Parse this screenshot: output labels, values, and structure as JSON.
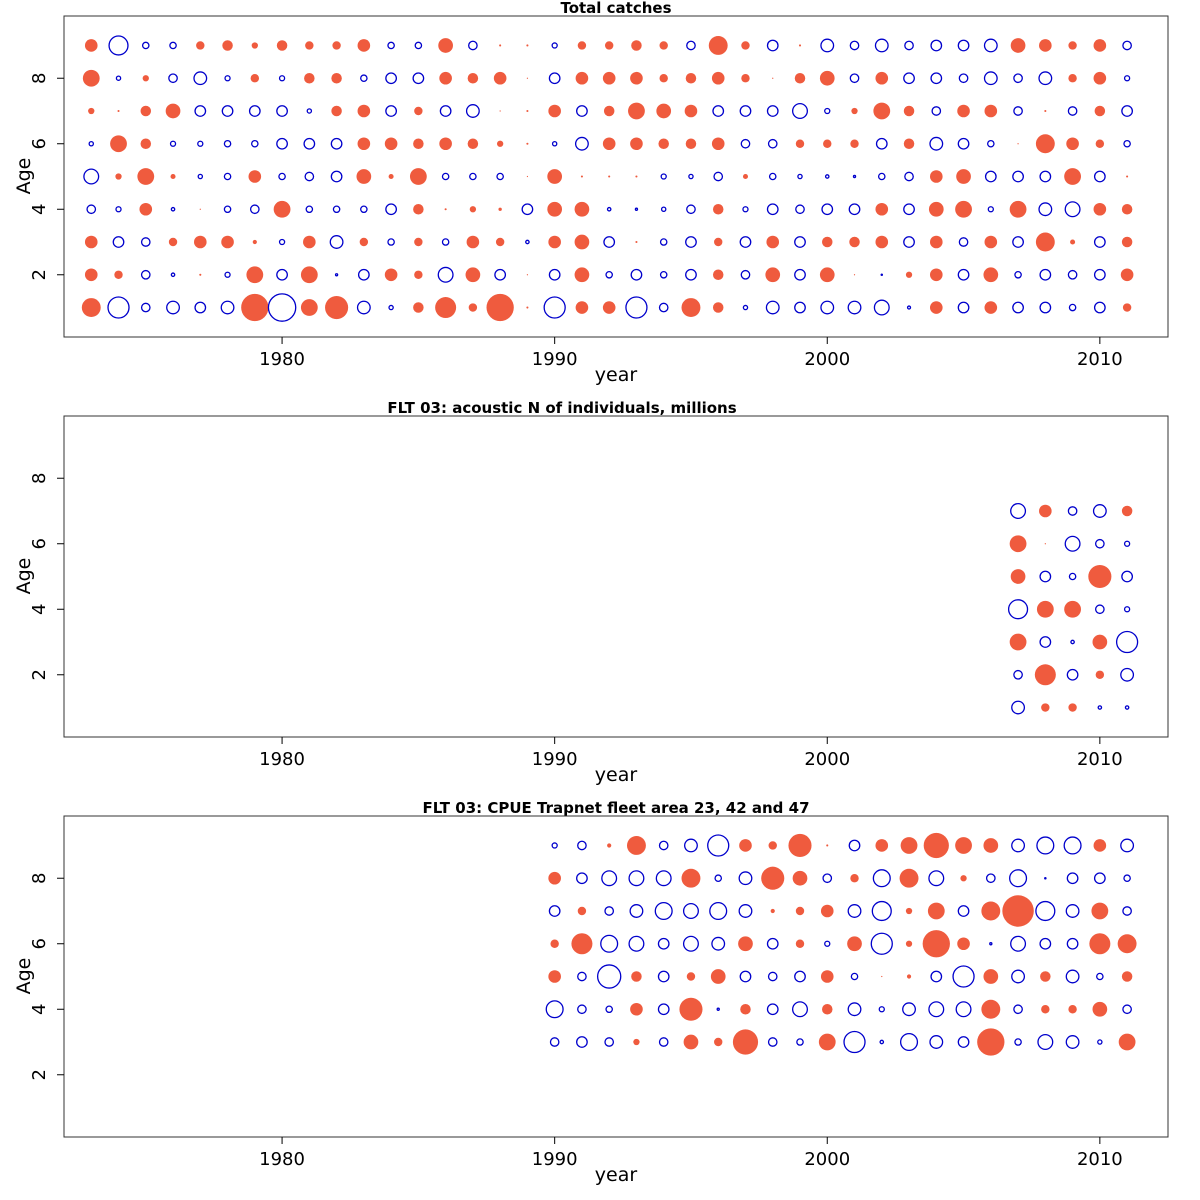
{
  "chart_data": [
    {
      "type": "scatter",
      "title": "Total catches",
      "xlabel": "year",
      "ylabel": "Age",
      "xlim": [
        1972.0,
        2012.5
      ],
      "ylim": [
        0.1,
        9.9
      ],
      "xticks": [
        1980,
        1990,
        2000,
        2010
      ],
      "yticks": [
        2,
        4,
        6,
        8
      ],
      "grid": false,
      "legend": "none",
      "series": [
        {
          "ages": [
            1,
            2,
            3,
            4,
            5,
            6,
            7,
            8,
            9
          ],
          "years": [
            1973,
            1974,
            1975,
            1976,
            1977,
            1978,
            1979,
            1980,
            1981,
            1982,
            1983,
            1984,
            1985,
            1986,
            1987,
            1988,
            1989,
            1990,
            1991,
            1992,
            1993,
            1994,
            1995,
            1996,
            1997,
            1998,
            1999,
            2000,
            2001,
            2002,
            2003,
            2004,
            2005,
            2006,
            2007,
            2008,
            2009,
            2010,
            2011
          ],
          "residuals": [
            [
              0.45,
              -0.5,
              -0.2,
              -0.3,
              -0.25,
              -0.3,
              0.65,
              -0.65,
              0.4,
              0.55,
              -0.3,
              -0.1,
              0.25,
              0.5,
              0.2,
              0.65,
              0.05,
              -0.5,
              0.3,
              0.3,
              -0.5,
              -0.2,
              0.45,
              0.25,
              -0.1,
              -0.3,
              -0.25,
              -0.3,
              -0.3,
              -0.35,
              -0.07,
              0.3,
              -0.25,
              0.3,
              -0.25,
              -0.25,
              -0.15,
              -0.25,
              0.2
            ],
            [
              0.3,
              0.2,
              -0.2,
              -0.08,
              0.05,
              -0.12,
              0.4,
              -0.25,
              0.4,
              -0.05,
              -0.25,
              0.3,
              0.2,
              -0.35,
              0.35,
              -0.25,
              0.0,
              -0.25,
              0.35,
              -0.15,
              -0.25,
              -0.15,
              -0.25,
              0.25,
              -0.2,
              0.35,
              -0.25,
              0.35,
              0.02,
              -0.02,
              0.15,
              0.3,
              -0.25,
              0.35,
              -0.15,
              -0.25,
              -0.2,
              -0.25,
              0.3
            ],
            [
              0.3,
              -0.25,
              -0.2,
              0.2,
              0.3,
              0.3,
              0.1,
              -0.12,
              0.3,
              -0.3,
              0.2,
              -0.15,
              0.2,
              -0.15,
              0.3,
              0.2,
              -0.08,
              0.3,
              0.35,
              -0.25,
              0.05,
              -0.15,
              -0.25,
              0.2,
              -0.25,
              0.3,
              -0.25,
              0.25,
              0.25,
              0.3,
              -0.25,
              0.3,
              -0.2,
              0.3,
              -0.25,
              0.45,
              0.12,
              -0.25,
              0.25
            ],
            [
              -0.2,
              -0.12,
              0.3,
              -0.08,
              0.03,
              -0.15,
              -0.2,
              0.4,
              -0.15,
              -0.15,
              -0.15,
              -0.25,
              0.25,
              0.05,
              0.15,
              0.08,
              -0.25,
              0.35,
              0.35,
              -0.08,
              -0.05,
              -0.1,
              -0.2,
              0.25,
              -0.12,
              -0.25,
              -0.2,
              -0.25,
              -0.25,
              0.3,
              -0.25,
              0.35,
              0.4,
              -0.12,
              0.4,
              -0.3,
              -0.35,
              0.3,
              0.25
            ],
            [
              -0.35,
              0.15,
              0.4,
              0.12,
              -0.1,
              -0.15,
              0.3,
              -0.15,
              -0.2,
              -0.25,
              0.35,
              0.12,
              0.4,
              -0.15,
              -0.15,
              -0.15,
              0.0,
              0.35,
              0.05,
              0.05,
              0.05,
              -0.12,
              -0.1,
              -0.2,
              0.12,
              -0.15,
              -0.1,
              -0.08,
              -0.05,
              -0.15,
              -0.2,
              0.3,
              0.35,
              -0.25,
              -0.25,
              -0.25,
              0.4,
              -0.25,
              0.05
            ],
            [
              -0.1,
              0.4,
              0.25,
              -0.12,
              -0.12,
              -0.15,
              -0.15,
              -0.25,
              -0.25,
              -0.25,
              0.3,
              0.3,
              0.25,
              0.3,
              0.25,
              0.15,
              0.05,
              -0.1,
              -0.3,
              0.3,
              0.3,
              0.25,
              0.25,
              0.3,
              -0.2,
              -0.2,
              0.2,
              0.2,
              0.2,
              -0.25,
              0.25,
              -0.3,
              -0.25,
              -0.15,
              0.03,
              0.45,
              0.3,
              0.2,
              -0.15
            ],
            [
              0.15,
              0.05,
              0.25,
              0.35,
              -0.25,
              -0.25,
              -0.25,
              -0.25,
              -0.1,
              0.25,
              0.3,
              -0.25,
              0.2,
              -0.25,
              -0.3,
              0.03,
              0.05,
              0.3,
              -0.25,
              0.25,
              0.4,
              0.35,
              0.3,
              -0.25,
              -0.25,
              -0.25,
              -0.35,
              -0.12,
              0.15,
              0.4,
              0.25,
              -0.2,
              0.3,
              0.3,
              -0.2,
              0.05,
              -0.2,
              0.25,
              -0.25
            ],
            [
              0.4,
              -0.1,
              0.15,
              -0.2,
              -0.3,
              -0.12,
              0.2,
              -0.12,
              0.25,
              0.25,
              -0.15,
              -0.25,
              -0.25,
              0.3,
              0.25,
              0.3,
              0.0,
              -0.25,
              0.3,
              0.3,
              0.3,
              0.2,
              0.25,
              0.3,
              0.2,
              0.03,
              0.25,
              0.35,
              -0.2,
              0.3,
              -0.25,
              -0.25,
              -0.2,
              -0.3,
              -0.2,
              -0.3,
              0.2,
              0.3,
              -0.12
            ],
            [
              0.3,
              -0.45,
              -0.15,
              -0.15,
              0.2,
              0.25,
              0.15,
              0.25,
              0.2,
              0.2,
              0.3,
              -0.15,
              -0.15,
              0.35,
              -0.2,
              0.05,
              0.05,
              -0.12,
              0.2,
              0.2,
              0.25,
              0.2,
              -0.2,
              0.45,
              0.2,
              -0.25,
              0.05,
              -0.3,
              -0.2,
              -0.3,
              -0.2,
              -0.25,
              -0.25,
              -0.3,
              0.35,
              0.3,
              0.2,
              0.3,
              -0.2
            ]
          ]
        }
      ]
    },
    {
      "type": "scatter",
      "title": "FLT 03:   acoustic   N of individuals, millions",
      "xlabel": "year",
      "ylabel": "Age",
      "xlim": [
        1972.0,
        2012.5
      ],
      "ylim": [
        0.1,
        9.9
      ],
      "xticks": [
        1980,
        1990,
        2000,
        2010
      ],
      "yticks": [
        2,
        4,
        6,
        8
      ],
      "grid": false,
      "legend": "none",
      "series": [
        {
          "ages": [
            1,
            2,
            3,
            4,
            5,
            6,
            7
          ],
          "years": [
            2007,
            2008,
            2009,
            2010,
            2011
          ],
          "residuals": [
            [
              -0.3,
              0.2,
              0.2,
              -0.08,
              -0.08
            ],
            [
              -0.2,
              0.5,
              -0.25,
              0.2,
              -0.3
            ],
            [
              0.4,
              -0.25,
              -0.08,
              0.35,
              -0.5
            ],
            [
              -0.45,
              0.4,
              0.4,
              -0.2,
              -0.12
            ],
            [
              0.35,
              -0.25,
              -0.15,
              0.55,
              -0.25
            ],
            [
              0.4,
              0.03,
              -0.35,
              -0.2,
              -0.12
            ],
            [
              -0.35,
              0.3,
              -0.2,
              -0.3,
              0.25
            ]
          ]
        }
      ]
    },
    {
      "type": "scatter",
      "title": "FLT 03: CPUE Trapnet fleet area 23, 42 and 47",
      "xlabel": "year",
      "ylabel": "Age",
      "xlim": [
        1972.0,
        2012.5
      ],
      "ylim": [
        0.1,
        9.9
      ],
      "xticks": [
        1980,
        1990,
        2000,
        2010
      ],
      "yticks": [
        2,
        4,
        6,
        8
      ],
      "grid": false,
      "legend": "none",
      "series": [
        {
          "ages": [
            3,
            4,
            5,
            6,
            7,
            8,
            9
          ],
          "years": [
            1990,
            1991,
            1992,
            1993,
            1994,
            1995,
            1996,
            1997,
            1998,
            1999,
            2000,
            2001,
            2002,
            2003,
            2004,
            2005,
            2006,
            2007,
            2008,
            2009,
            2010,
            2011
          ],
          "residuals": [
            [
              -0.2,
              -0.25,
              -0.2,
              0.15,
              -0.2,
              0.35,
              0.2,
              0.6,
              -0.2,
              -0.15,
              0.4,
              -0.5,
              -0.08,
              -0.4,
              -0.3,
              -0.25,
              0.65,
              -0.15,
              -0.35,
              -0.3,
              -0.1,
              0.4
            ],
            [
              -0.4,
              -0.2,
              -0.15,
              0.3,
              -0.25,
              0.55,
              -0.05,
              0.25,
              -0.25,
              -0.35,
              0.25,
              -0.3,
              -0.12,
              -0.3,
              -0.35,
              -0.35,
              0.45,
              -0.2,
              0.2,
              0.2,
              0.35,
              -0.2
            ],
            [
              0.3,
              -0.2,
              -0.55,
              0.25,
              -0.25,
              0.2,
              0.35,
              -0.25,
              -0.2,
              -0.25,
              0.3,
              -0.15,
              0.03,
              0.1,
              -0.25,
              -0.5,
              0.35,
              -0.3,
              0.25,
              -0.3,
              -0.15,
              0.25
            ],
            [
              0.2,
              0.5,
              -0.4,
              -0.35,
              -0.25,
              -0.35,
              -0.3,
              0.35,
              -0.25,
              0.2,
              -0.12,
              0.35,
              -0.5,
              0.15,
              0.65,
              0.3,
              -0.05,
              -0.35,
              -0.25,
              -0.25,
              0.5,
              0.45
            ],
            [
              -0.25,
              0.2,
              -0.2,
              -0.3,
              -0.4,
              -0.35,
              -0.4,
              -0.3,
              0.1,
              0.2,
              0.3,
              -0.3,
              -0.45,
              0.15,
              0.4,
              -0.25,
              0.45,
              0.75,
              -0.45,
              -0.3,
              0.4,
              -0.2
            ],
            [
              0.3,
              -0.25,
              -0.35,
              -0.35,
              -0.35,
              0.45,
              -0.15,
              -0.3,
              0.55,
              0.35,
              -0.2,
              0.2,
              -0.4,
              0.45,
              -0.35,
              0.15,
              -0.2,
              -0.4,
              -0.03,
              -0.25,
              -0.25,
              -0.15
            ],
            [
              -0.12,
              -0.2,
              0.1,
              0.45,
              -0.2,
              -0.3,
              -0.5,
              0.3,
              0.2,
              0.55,
              0.05,
              -0.25,
              0.3,
              0.4,
              0.6,
              0.4,
              0.35,
              -0.3,
              -0.4,
              -0.4,
              0.3,
              -0.3
            ]
          ]
        }
      ]
    }
  ],
  "style": {
    "positive_color": "#ef5b3e",
    "negative_color": "#0000cc",
    "frame_color": "#333333"
  }
}
